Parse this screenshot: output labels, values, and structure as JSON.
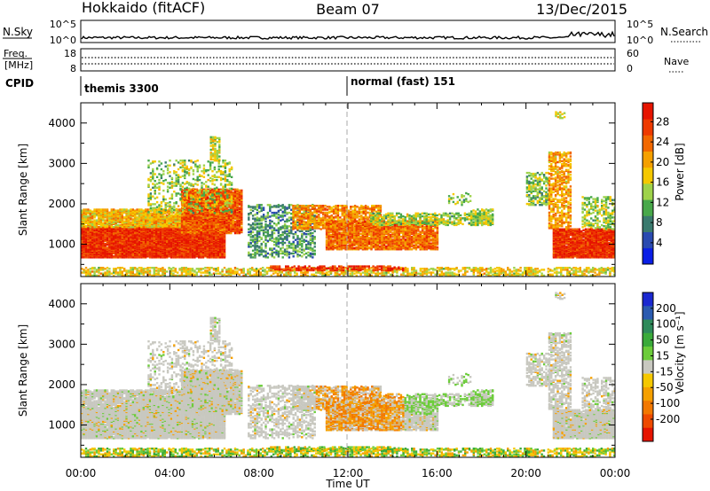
{
  "header": {
    "station": "Hokkaido (fitACF)",
    "beam": "Beam 07",
    "date": "13/Dec/2015"
  },
  "top_panels": {
    "nsky_label": "N.Sky",
    "nsky_ticks": [
      "10^5",
      "10^0"
    ],
    "nsearch_label": "N.Search",
    "nsearch_ticks": [
      "10^5",
      "10^0"
    ],
    "freq_label_1": "Freq.",
    "freq_label_2": "[MHz]",
    "freq_ticks": [
      "18",
      "8"
    ],
    "nave_label": "Nave",
    "nave_ticks": [
      "60",
      "0"
    ],
    "cpid_label": "CPID",
    "cpid_1": "themis 3300",
    "cpid_2": "normal (fast) 151"
  },
  "chart_data": [
    {
      "type": "heatmap",
      "title": "",
      "xlabel": "Time UT",
      "ylabel": "Slant Range [km]",
      "x_ticks": [
        "00:00",
        "04:00",
        "08:00",
        "12:00",
        "16:00",
        "20:00",
        "00:00"
      ],
      "y_ticks": [
        1000,
        2000,
        3000,
        4000
      ],
      "ylim": [
        200,
        4500
      ],
      "colorbar": {
        "label": "Power [dB]",
        "ticks": [
          "4",
          "8",
          "12",
          "16",
          "20",
          "24",
          "28"
        ],
        "colors": [
          "#0a1ee6",
          "#2a4ab0",
          "#3a7a6e",
          "#48a84a",
          "#9ed24a",
          "#f5c800",
          "#f5a000",
          "#f26800",
          "#ee3a00",
          "#e61400"
        ]
      }
    },
    {
      "type": "heatmap",
      "title": "",
      "xlabel": "Time UT",
      "ylabel": "Slant Range [km]",
      "x_ticks": [
        "00:00",
        "04:00",
        "08:00",
        "12:00",
        "16:00",
        "20:00",
        "00:00"
      ],
      "y_ticks": [
        1000,
        2000,
        3000,
        4000
      ],
      "ylim": [
        200,
        4500
      ],
      "colorbar": {
        "label": "Velocity [m s⁻¹]",
        "ticks": [
          "200",
          "100",
          "50",
          "15",
          "-15",
          "-50",
          "-100",
          "-200"
        ],
        "colors": [
          "#1a28d0",
          "#2a5ab0",
          "#2e8a5a",
          "#3aaa3a",
          "#6ccc3a",
          "#c8c8c0",
          "#f5c800",
          "#f5a000",
          "#f27800",
          "#ee4a00",
          "#e61400"
        ]
      }
    }
  ],
  "x_axis_label": "Time UT"
}
